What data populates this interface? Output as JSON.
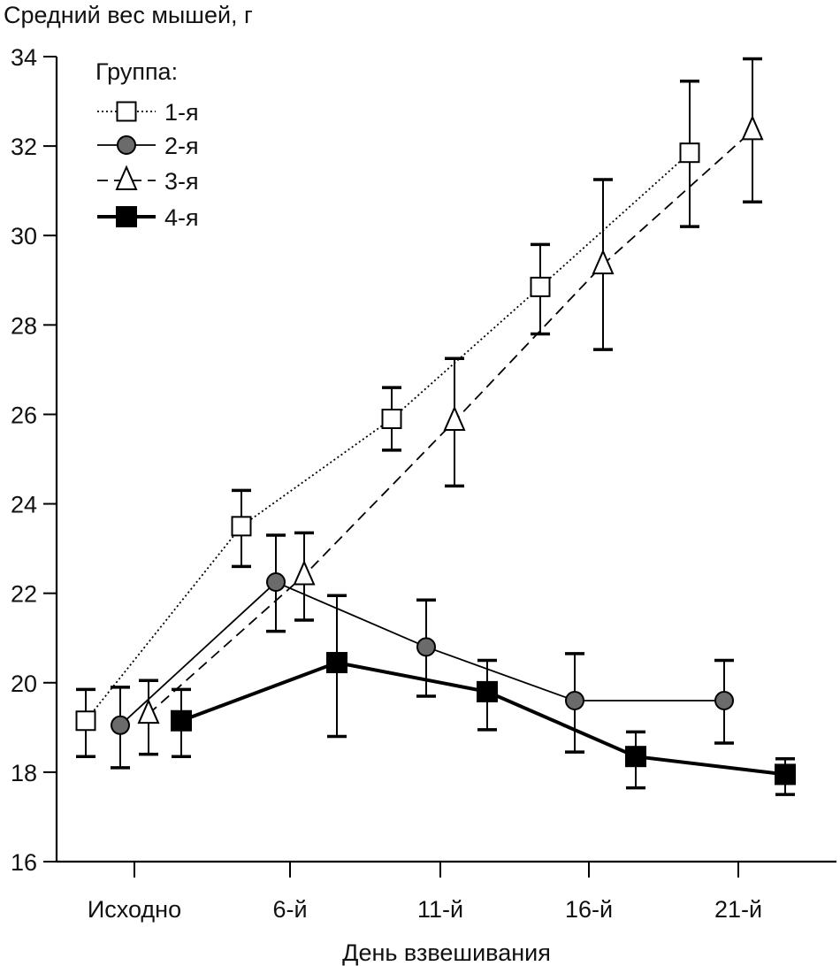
{
  "chart_data": {
    "type": "line",
    "title": "",
    "ylabel": "Средний вес мышей, г",
    "xlabel": "День взвешивания",
    "ylim": [
      16,
      34
    ],
    "yticks": [
      16,
      18,
      20,
      22,
      24,
      26,
      28,
      30,
      32,
      34
    ],
    "ytick_labels": [
      "16",
      "18",
      "20",
      "22",
      "24",
      "26",
      "28",
      "30",
      "32",
      "34"
    ],
    "categories": [
      "Исходно",
      "6-й",
      "11-й",
      "16-й",
      "21-й"
    ],
    "grid": false,
    "error_bars": true,
    "legend": {
      "title": "Группа:",
      "placement": "top-left"
    },
    "series": [
      {
        "name": "1-я",
        "marker": "square-open",
        "line": "dotted",
        "color": "#000000",
        "fill": "#ffffff",
        "values": [
          19.15,
          23.5,
          25.9,
          28.85,
          31.85
        ],
        "err_upper": [
          19.85,
          24.3,
          26.6,
          29.8,
          33.45
        ],
        "err_lower": [
          18.35,
          22.6,
          25.2,
          27.8,
          30.2
        ]
      },
      {
        "name": "2-я",
        "marker": "circle-filled",
        "line": "solid",
        "color": "#000000",
        "fill": "#6b6b6b",
        "values": [
          19.05,
          22.25,
          20.8,
          19.6,
          19.6
        ],
        "err_upper": [
          19.9,
          23.3,
          21.85,
          20.65,
          20.5
        ],
        "err_lower": [
          18.1,
          21.15,
          19.7,
          18.45,
          18.65
        ]
      },
      {
        "name": "3-я",
        "marker": "triangle-open",
        "line": "dashed",
        "color": "#000000",
        "fill": "#ffffff",
        "values": [
          19.3,
          22.4,
          25.85,
          29.35,
          32.35
        ],
        "err_upper": [
          20.05,
          23.35,
          27.25,
          31.25,
          33.95
        ],
        "err_lower": [
          18.4,
          21.4,
          24.4,
          27.45,
          30.75
        ]
      },
      {
        "name": "4-я",
        "marker": "square-filled",
        "line": "thick-solid",
        "color": "#000000",
        "fill": "#000000",
        "values": [
          19.15,
          20.45,
          19.8,
          18.35,
          17.95
        ],
        "err_upper": [
          19.85,
          21.95,
          20.5,
          18.9,
          18.3
        ],
        "err_lower": [
          18.35,
          18.8,
          18.95,
          17.65,
          17.5
        ]
      }
    ]
  }
}
